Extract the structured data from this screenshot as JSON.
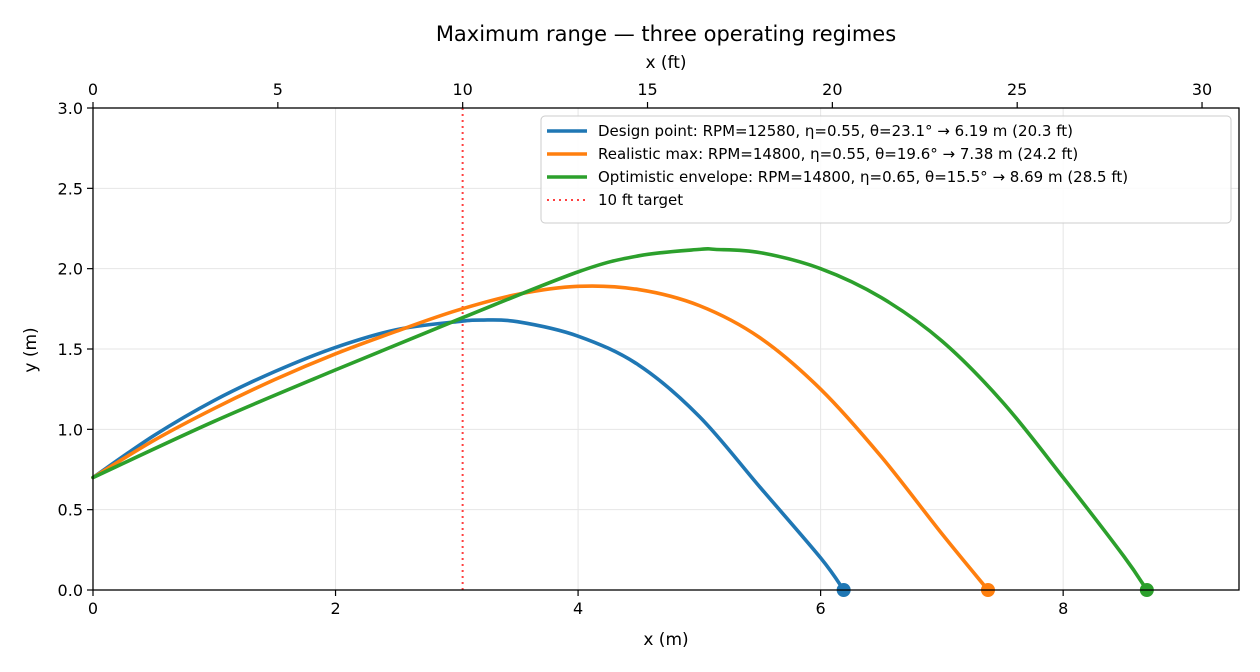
{
  "chart_data": {
    "type": "line",
    "title": "Maximum range — three operating regimes",
    "xlabel": "x (m)",
    "ylabel": "y (m)",
    "x2label": "x (ft)",
    "xlim": [
      0,
      9.45
    ],
    "ylim": [
      0,
      3.0
    ],
    "x2lim": [
      0,
      31.0
    ],
    "xticks": [
      0,
      2,
      4,
      6,
      8
    ],
    "yticks": [
      0.0,
      0.5,
      1.0,
      1.5,
      2.0,
      2.5,
      3.0
    ],
    "x2ticks": [
      0,
      5,
      10,
      15,
      20,
      25,
      30
    ],
    "grid": true,
    "legend_position": "top-right",
    "series": [
      {
        "name": "Design point: RPM=12580, η=0.55, θ=23.1°  → 6.19 m (20.3 ft)",
        "color": "#1f77b4",
        "x": [
          0.0,
          0.5,
          1.0,
          1.5,
          2.0,
          2.5,
          3.0,
          3.2,
          3.5,
          4.0,
          4.5,
          5.0,
          5.5,
          6.0,
          6.19
        ],
        "y": [
          0.7,
          0.96,
          1.18,
          1.36,
          1.51,
          1.62,
          1.67,
          1.68,
          1.67,
          1.58,
          1.4,
          1.08,
          0.64,
          0.2,
          0.0
        ],
        "endpoint": [
          6.19,
          0.0
        ]
      },
      {
        "name": "Realistic max: RPM=14800, η=0.55, θ=19.6°  → 7.38 m (24.2 ft)",
        "color": "#ff7f0e",
        "x": [
          0.0,
          0.5,
          1.0,
          1.5,
          2.0,
          2.5,
          3.0,
          3.5,
          4.0,
          4.5,
          5.0,
          5.5,
          6.0,
          6.5,
          7.0,
          7.38
        ],
        "y": [
          0.7,
          0.93,
          1.13,
          1.31,
          1.47,
          1.61,
          1.74,
          1.84,
          1.89,
          1.87,
          1.77,
          1.57,
          1.25,
          0.83,
          0.35,
          0.0
        ],
        "endpoint": [
          7.38,
          0.0
        ]
      },
      {
        "name": "Optimistic envelope: RPM=14800, η=0.65, θ=15.5°  → 8.69 m (28.5 ft)",
        "color": "#2ca02c",
        "x": [
          0.0,
          1.0,
          2.0,
          3.0,
          4.0,
          4.5,
          5.0,
          5.13,
          5.5,
          6.0,
          6.5,
          7.0,
          7.5,
          8.0,
          8.5,
          8.69
        ],
        "y": [
          0.7,
          1.05,
          1.37,
          1.68,
          1.98,
          2.08,
          2.12,
          2.12,
          2.1,
          2.0,
          1.82,
          1.55,
          1.17,
          0.7,
          0.21,
          0.0
        ],
        "endpoint": [
          8.69,
          0.0
        ]
      }
    ],
    "reference_lines": [
      {
        "name": "10 ft target",
        "x": 3.048,
        "color": "#ff0000",
        "style": "dotted"
      }
    ]
  }
}
